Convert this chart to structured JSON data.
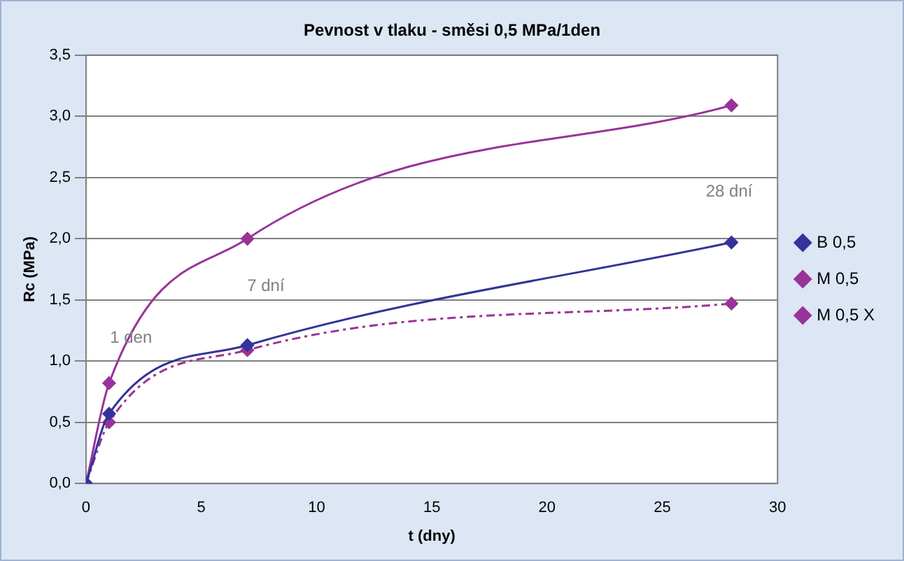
{
  "chart_data": {
    "type": "line",
    "title": "Pevnost v tlaku - směsi 0,5 MPa/1den",
    "xlabel": "t (dny)",
    "ylabel": "Rc (MPa)",
    "series": [
      {
        "name": "B 0,5",
        "color": "#333399",
        "x": [
          0,
          1,
          7,
          28
        ],
        "values": [
          0,
          0.57,
          1.13,
          1.97
        ],
        "line_style": "solid"
      },
      {
        "name": "M 0,5",
        "color": "#993399",
        "x": [
          0,
          1,
          7,
          28
        ],
        "values": [
          0,
          0.5,
          1.09,
          1.47
        ],
        "line_style": "dashed"
      },
      {
        "name": "M 0,5 X",
        "color": "#993399",
        "x": [
          0,
          1,
          7,
          28
        ],
        "values": [
          0,
          0.82,
          2.0,
          3.09
        ],
        "line_style": "solid"
      }
    ],
    "xlim": [
      0,
      30
    ],
    "xticks": [
      0,
      5,
      10,
      15,
      20,
      25,
      30
    ],
    "ylim": [
      0,
      3.5
    ],
    "yticks": [
      {
        "value": 0,
        "label": "0,0"
      },
      {
        "value": 0.5,
        "label": "0,5"
      },
      {
        "value": 1,
        "label": "1,0"
      },
      {
        "value": 1.5,
        "label": "1,5"
      },
      {
        "value": 2,
        "label": "2,0"
      },
      {
        "value": 2.5,
        "label": "2,5"
      },
      {
        "value": 3,
        "label": "3,0"
      },
      {
        "value": 3.5,
        "label": "3,5"
      }
    ],
    "annotations": [
      "1 den",
      "7 dní",
      "28 dní"
    ],
    "grid": "y",
    "legend": "right",
    "marker": "diamond"
  }
}
